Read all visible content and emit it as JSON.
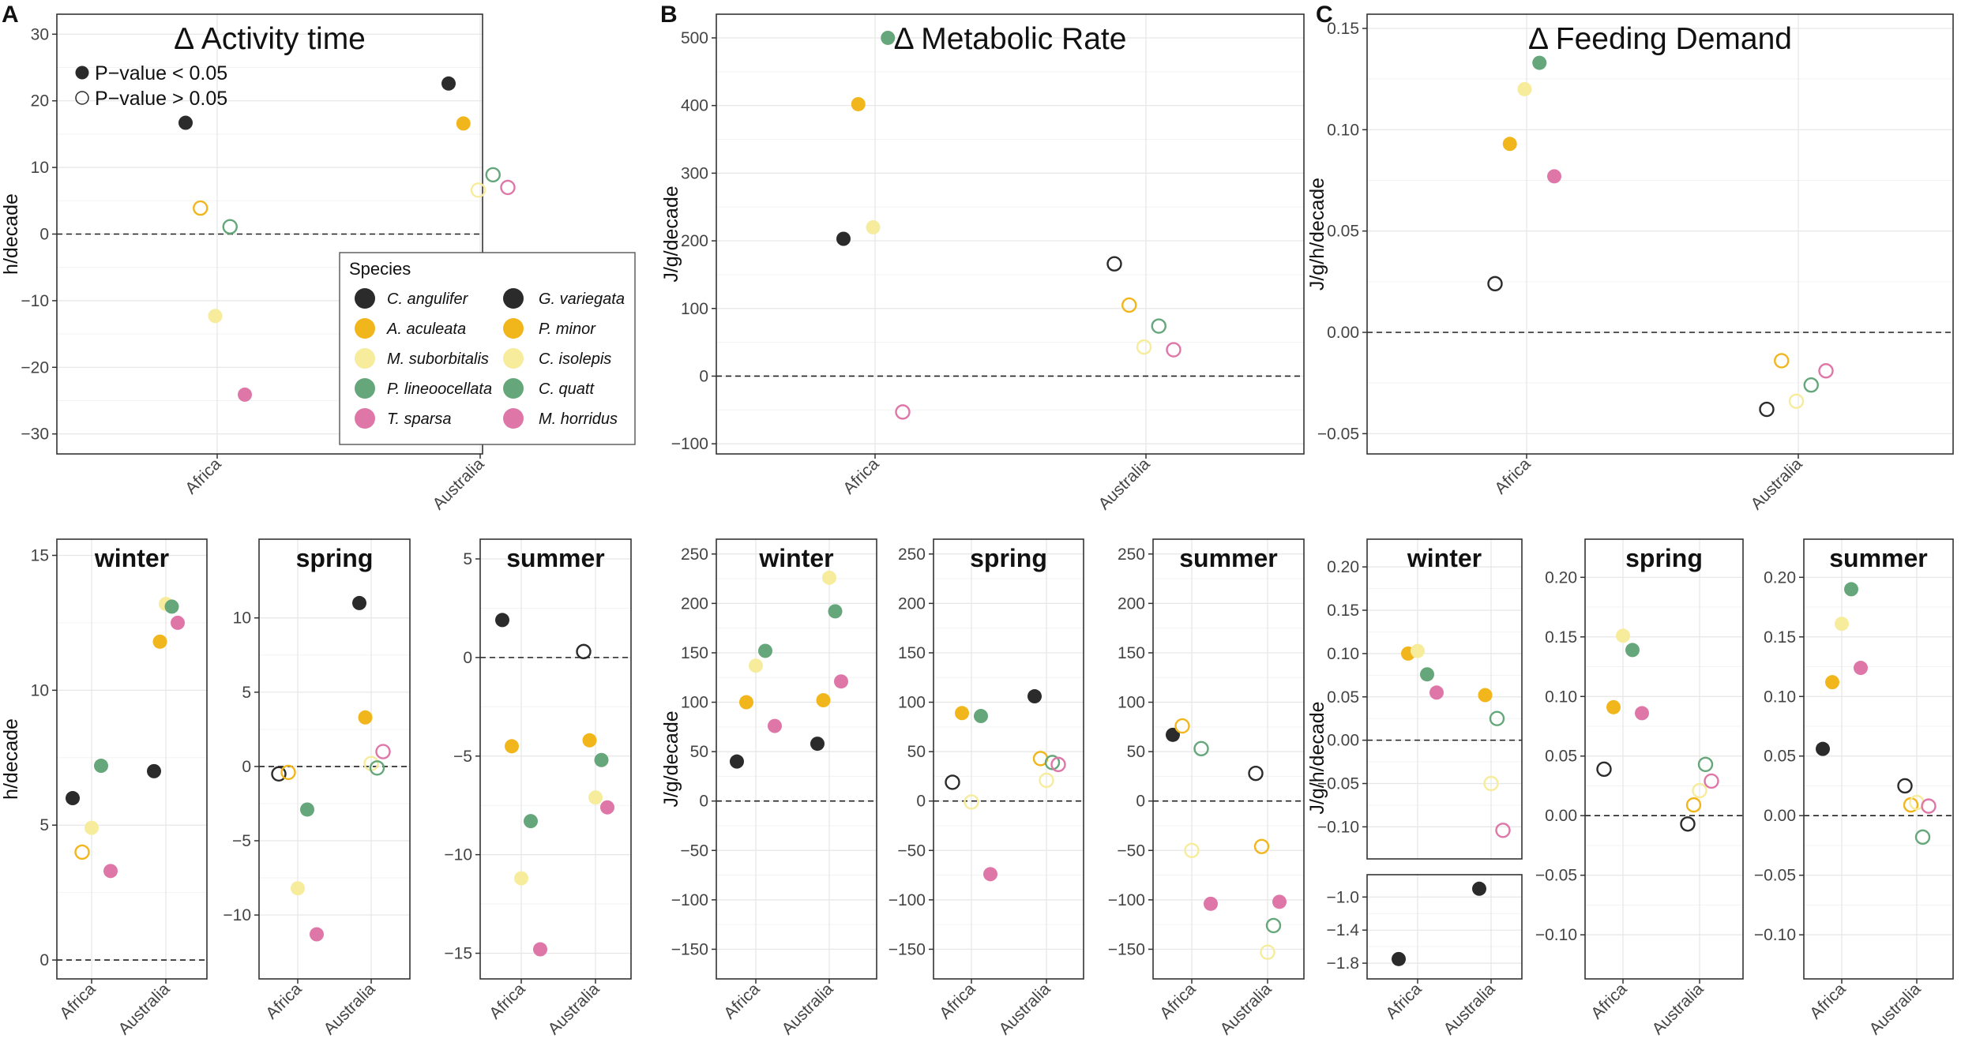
{
  "panel_labels": [
    "A",
    "B",
    "C"
  ],
  "legend": {
    "sig_yes": "P−value < 0.05",
    "sig_no": "P−value > 0.05",
    "species_title": "Species",
    "left": [
      "C. angulifer",
      "A. aculeata",
      "M. suborbitalis",
      "P. lineoocellata",
      "T. sparsa"
    ],
    "right": [
      "G. variegata",
      "P. minor",
      "C. isolepis",
      "C. quatt",
      "M. horridus"
    ]
  },
  "colors": [
    "#2b2b2b",
    "#f2b61d",
    "#f6ec9c",
    "#65a77a",
    "#de77a8"
  ],
  "chart_data": [
    {
      "id": "A_main",
      "type": "scatter",
      "title": "Δ Activity time",
      "ylabel": "h/decade",
      "categories": [
        "Africa",
        "Australia"
      ],
      "ylim": [
        -33,
        33
      ],
      "yticks": [
        -30,
        -20,
        -10,
        0,
        10,
        20,
        30
      ],
      "points": [
        {
          "c": 0,
          "s": 0,
          "g": 1,
          "y": 16.7
        },
        {
          "c": 0,
          "s": 1,
          "g": 0,
          "y": 3.9
        },
        {
          "c": 0,
          "s": 2,
          "g": 1,
          "y": -12.3
        },
        {
          "c": 0,
          "s": 3,
          "g": 0,
          "y": 1.1
        },
        {
          "c": 0,
          "s": 4,
          "g": 1,
          "y": -24.1
        },
        {
          "c": 1,
          "s": 0,
          "g": 1,
          "y": 22.6
        },
        {
          "c": 1,
          "s": 1,
          "g": 1,
          "y": 16.6
        },
        {
          "c": 1,
          "s": 2,
          "g": 0,
          "y": 6.6
        },
        {
          "c": 1,
          "s": 3,
          "g": 0,
          "y": 8.9
        },
        {
          "c": 1,
          "s": 4,
          "g": 0,
          "y": 7.0
        }
      ]
    },
    {
      "id": "B_main",
      "type": "scatter",
      "title": "Δ Metabolic Rate",
      "ylabel": "J/g/decade",
      "categories": [
        "Africa",
        "Australia"
      ],
      "ylim": [
        -115,
        535
      ],
      "yticks": [
        -100,
        0,
        100,
        200,
        300,
        400,
        500
      ],
      "points": [
        {
          "c": 0,
          "s": 0,
          "g": 1,
          "y": 203
        },
        {
          "c": 0,
          "s": 1,
          "g": 1,
          "y": 402
        },
        {
          "c": 0,
          "s": 2,
          "g": 1,
          "y": 220
        },
        {
          "c": 0,
          "s": 3,
          "g": 1,
          "y": 500
        },
        {
          "c": 0,
          "s": 4,
          "g": 0,
          "y": -53
        },
        {
          "c": 1,
          "s": 0,
          "g": 0,
          "y": 166
        },
        {
          "c": 1,
          "s": 1,
          "g": 0,
          "y": 105
        },
        {
          "c": 1,
          "s": 2,
          "g": 0,
          "y": 43
        },
        {
          "c": 1,
          "s": 3,
          "g": 0,
          "y": 74
        },
        {
          "c": 1,
          "s": 4,
          "g": 0,
          "y": 39
        }
      ]
    },
    {
      "id": "C_main",
      "type": "scatter",
      "title": "Δ Feeding Demand",
      "ylabel": "J/g/h/decade",
      "categories": [
        "Africa",
        "Australia"
      ],
      "ylim": [
        -0.06,
        0.157
      ],
      "yticks": [
        -0.05,
        0.0,
        0.05,
        0.1,
        0.15
      ],
      "yticklabels": [
        "−0.05",
        "0.00",
        "0.05",
        "0.10",
        "0.15"
      ],
      "points": [
        {
          "c": 0,
          "s": 0,
          "g": 0,
          "y": 0.024
        },
        {
          "c": 0,
          "s": 1,
          "g": 1,
          "y": 0.093
        },
        {
          "c": 0,
          "s": 2,
          "g": 1,
          "y": 0.12
        },
        {
          "c": 0,
          "s": 3,
          "g": 1,
          "y": 0.133
        },
        {
          "c": 0,
          "s": 4,
          "g": 1,
          "y": 0.077
        },
        {
          "c": 1,
          "s": 0,
          "g": 0,
          "y": -0.038
        },
        {
          "c": 1,
          "s": 1,
          "g": 0,
          "y": -0.014
        },
        {
          "c": 1,
          "s": 2,
          "g": 0,
          "y": -0.034
        },
        {
          "c": 1,
          "s": 3,
          "g": 0,
          "y": -0.026
        },
        {
          "c": 1,
          "s": 4,
          "g": 0,
          "y": -0.019
        }
      ]
    },
    {
      "id": "A_winter",
      "type": "scatter",
      "title": "winter",
      "ylabel": "h/decade",
      "categories": [
        "Africa",
        "Australia"
      ],
      "ylim": [
        -0.7,
        15.6
      ],
      "yticks": [
        0,
        5,
        10,
        15
      ],
      "points": [
        {
          "c": 0,
          "s": 0,
          "g": 1,
          "y": 6.0
        },
        {
          "c": 0,
          "s": 1,
          "g": 0,
          "y": 4.0
        },
        {
          "c": 0,
          "s": 2,
          "g": 1,
          "y": 4.9
        },
        {
          "c": 0,
          "s": 3,
          "g": 1,
          "y": 7.2
        },
        {
          "c": 0,
          "s": 4,
          "g": 1,
          "y": 3.3
        },
        {
          "c": 1,
          "s": 0,
          "g": 1,
          "y": 7.0
        },
        {
          "c": 1,
          "s": 1,
          "g": 1,
          "y": 11.8
        },
        {
          "c": 1,
          "s": 2,
          "g": 1,
          "y": 13.2
        },
        {
          "c": 1,
          "s": 3,
          "g": 1,
          "y": 13.1
        },
        {
          "c": 1,
          "s": 4,
          "g": 1,
          "y": 12.5
        }
      ]
    },
    {
      "id": "A_spring",
      "type": "scatter",
      "title": "spring",
      "ylabel": "",
      "categories": [
        "Africa",
        "Australia"
      ],
      "ylim": [
        -14.3,
        15.3
      ],
      "yticks": [
        -10,
        -5,
        0,
        5,
        10
      ],
      "points": [
        {
          "c": 0,
          "s": 0,
          "g": 0,
          "y": -0.5
        },
        {
          "c": 0,
          "s": 1,
          "g": 0,
          "y": -0.4
        },
        {
          "c": 0,
          "s": 2,
          "g": 1,
          "y": -8.2
        },
        {
          "c": 0,
          "s": 3,
          "g": 1,
          "y": -2.9
        },
        {
          "c": 0,
          "s": 4,
          "g": 1,
          "y": -11.3
        },
        {
          "c": 1,
          "s": 0,
          "g": 1,
          "y": 11.0
        },
        {
          "c": 1,
          "s": 1,
          "g": 1,
          "y": 3.3
        },
        {
          "c": 1,
          "s": 2,
          "g": 0,
          "y": 0.2
        },
        {
          "c": 1,
          "s": 3,
          "g": 0,
          "y": -0.1
        },
        {
          "c": 1,
          "s": 4,
          "g": 0,
          "y": 1.0
        }
      ]
    },
    {
      "id": "A_summer",
      "type": "scatter",
      "title": "summer",
      "ylabel": "",
      "categories": [
        "Africa",
        "Australia"
      ],
      "ylim": [
        -16.3,
        6.0
      ],
      "yticks": [
        -15,
        -10,
        -5,
        0,
        5
      ],
      "points": [
        {
          "c": 0,
          "s": 0,
          "g": 1,
          "y": 1.9
        },
        {
          "c": 0,
          "s": 1,
          "g": 1,
          "y": -4.5
        },
        {
          "c": 0,
          "s": 2,
          "g": 1,
          "y": -11.2
        },
        {
          "c": 0,
          "s": 3,
          "g": 1,
          "y": -8.3
        },
        {
          "c": 0,
          "s": 4,
          "g": 1,
          "y": -14.8
        },
        {
          "c": 1,
          "s": 0,
          "g": 0,
          "y": 0.3
        },
        {
          "c": 1,
          "s": 1,
          "g": 1,
          "y": -4.2
        },
        {
          "c": 1,
          "s": 2,
          "g": 1,
          "y": -7.1
        },
        {
          "c": 1,
          "s": 3,
          "g": 1,
          "y": -5.2
        },
        {
          "c": 1,
          "s": 4,
          "g": 1,
          "y": -7.6
        }
      ]
    },
    {
      "id": "B_winter",
      "type": "scatter",
      "title": "winter",
      "ylabel": "J/g/decade",
      "categories": [
        "Africa",
        "Australia"
      ],
      "ylim": [
        -180,
        265
      ],
      "yticks": [
        -150,
        -100,
        -50,
        0,
        50,
        100,
        150,
        200,
        250
      ],
      "points": [
        {
          "c": 0,
          "s": 0,
          "g": 1,
          "y": 40
        },
        {
          "c": 0,
          "s": 1,
          "g": 1,
          "y": 100
        },
        {
          "c": 0,
          "s": 2,
          "g": 1,
          "y": 137
        },
        {
          "c": 0,
          "s": 3,
          "g": 1,
          "y": 152
        },
        {
          "c": 0,
          "s": 4,
          "g": 1,
          "y": 76
        },
        {
          "c": 1,
          "s": 0,
          "g": 1,
          "y": 58
        },
        {
          "c": 1,
          "s": 1,
          "g": 1,
          "y": 102
        },
        {
          "c": 1,
          "s": 2,
          "g": 1,
          "y": 226
        },
        {
          "c": 1,
          "s": 3,
          "g": 1,
          "y": 192
        },
        {
          "c": 1,
          "s": 4,
          "g": 1,
          "y": 121
        }
      ]
    },
    {
      "id": "B_spring",
      "type": "scatter",
      "title": "spring",
      "ylabel": "",
      "categories": [
        "Africa",
        "Australia"
      ],
      "ylim": [
        -180,
        265
      ],
      "yticks": [
        -150,
        -100,
        -50,
        0,
        50,
        100,
        150,
        200,
        250
      ],
      "points": [
        {
          "c": 0,
          "s": 0,
          "g": 0,
          "y": 19
        },
        {
          "c": 0,
          "s": 1,
          "g": 1,
          "y": 89
        },
        {
          "c": 0,
          "s": 2,
          "g": 0,
          "y": -1
        },
        {
          "c": 0,
          "s": 3,
          "g": 1,
          "y": 86
        },
        {
          "c": 0,
          "s": 4,
          "g": 1,
          "y": -74
        },
        {
          "c": 1,
          "s": 0,
          "g": 1,
          "y": 106
        },
        {
          "c": 1,
          "s": 1,
          "g": 0,
          "y": 43
        },
        {
          "c": 1,
          "s": 2,
          "g": 0,
          "y": 21
        },
        {
          "c": 1,
          "s": 3,
          "g": 0,
          "y": 39
        },
        {
          "c": 1,
          "s": 4,
          "g": 0,
          "y": 37
        }
      ]
    },
    {
      "id": "B_summer",
      "type": "scatter",
      "title": "summer",
      "ylabel": "",
      "categories": [
        "Africa",
        "Australia"
      ],
      "ylim": [
        -180,
        265
      ],
      "yticks": [
        -150,
        -100,
        -50,
        0,
        50,
        100,
        150,
        200,
        250
      ],
      "points": [
        {
          "c": 0,
          "s": 0,
          "g": 1,
          "y": 67
        },
        {
          "c": 0,
          "s": 1,
          "g": 0,
          "y": 76
        },
        {
          "c": 0,
          "s": 2,
          "g": 0,
          "y": -50
        },
        {
          "c": 0,
          "s": 3,
          "g": 0,
          "y": 53
        },
        {
          "c": 0,
          "s": 4,
          "g": 1,
          "y": -104
        },
        {
          "c": 1,
          "s": 0,
          "g": 0,
          "y": 28
        },
        {
          "c": 1,
          "s": 1,
          "g": 0,
          "y": -46
        },
        {
          "c": 1,
          "s": 2,
          "g": 0,
          "y": -153
        },
        {
          "c": 1,
          "s": 3,
          "g": 0,
          "y": -126
        },
        {
          "c": 1,
          "s": 4,
          "g": 1,
          "y": -102
        }
      ]
    },
    {
      "id": "C_winter_top",
      "type": "scatter",
      "title": "winter",
      "ylabel": "J/g/h/decade",
      "categories": [
        "Africa",
        "Australia"
      ],
      "ylim": [
        -0.137,
        0.232
      ],
      "yticks": [
        -0.1,
        -0.05,
        0.0,
        0.05,
        0.1,
        0.15,
        0.2
      ],
      "yticklabels": [
        "−0.10",
        "−0.05",
        "0.00",
        "0.05",
        "0.10",
        "0.15",
        "0.20"
      ],
      "points": [
        {
          "c": 0,
          "s": 1,
          "g": 1,
          "y": 0.1
        },
        {
          "c": 0,
          "s": 2,
          "g": 1,
          "y": 0.103
        },
        {
          "c": 0,
          "s": 3,
          "g": 1,
          "y": 0.076
        },
        {
          "c": 0,
          "s": 4,
          "g": 1,
          "y": 0.055
        },
        {
          "c": 1,
          "s": 1,
          "g": 1,
          "y": 0.052
        },
        {
          "c": 1,
          "s": 2,
          "g": 0,
          "y": -0.05
        },
        {
          "c": 1,
          "s": 3,
          "g": 0,
          "y": 0.025
        },
        {
          "c": 1,
          "s": 4,
          "g": 0,
          "y": -0.104
        }
      ]
    },
    {
      "id": "C_winter_bottom",
      "type": "scatter",
      "title": "",
      "ylabel": "",
      "categories": [
        "Africa",
        "Australia"
      ],
      "ylim": [
        -1.99,
        -0.73
      ],
      "yticks": [
        -1.8,
        -1.4,
        -1.0
      ],
      "yticklabels": [
        "−1.8",
        "−1.4",
        "−1.0"
      ],
      "points": [
        {
          "c": 0,
          "s": 0,
          "g": 1,
          "y": -1.75
        },
        {
          "c": 1,
          "s": 0,
          "g": 1,
          "y": -0.9
        }
      ]
    },
    {
      "id": "C_spring",
      "type": "scatter",
      "title": "spring",
      "ylabel": "",
      "categories": [
        "Africa",
        "Australia"
      ],
      "ylim": [
        -0.137,
        0.232
      ],
      "yticks": [
        -0.1,
        -0.05,
        0.0,
        0.05,
        0.1,
        0.15,
        0.2
      ],
      "yticklabels": [
        "−0.10",
        "−0.05",
        "0.00",
        "0.05",
        "0.10",
        "0.15",
        "0.20"
      ],
      "points": [
        {
          "c": 0,
          "s": 0,
          "g": 0,
          "y": 0.039
        },
        {
          "c": 0,
          "s": 1,
          "g": 1,
          "y": 0.091
        },
        {
          "c": 0,
          "s": 2,
          "g": 1,
          "y": 0.151
        },
        {
          "c": 0,
          "s": 3,
          "g": 1,
          "y": 0.139
        },
        {
          "c": 0,
          "s": 4,
          "g": 1,
          "y": 0.086
        },
        {
          "c": 1,
          "s": 0,
          "g": 0,
          "y": -0.007
        },
        {
          "c": 1,
          "s": 1,
          "g": 0,
          "y": 0.009
        },
        {
          "c": 1,
          "s": 2,
          "g": 0,
          "y": 0.021
        },
        {
          "c": 1,
          "s": 3,
          "g": 0,
          "y": 0.043
        },
        {
          "c": 1,
          "s": 4,
          "g": 0,
          "y": 0.029
        }
      ]
    },
    {
      "id": "C_summer",
      "type": "scatter",
      "title": "summer",
      "ylabel": "",
      "categories": [
        "Africa",
        "Australia"
      ],
      "ylim": [
        -0.137,
        0.232
      ],
      "yticks": [
        -0.1,
        -0.05,
        0.0,
        0.05,
        0.1,
        0.15,
        0.2
      ],
      "yticklabels": [
        "−0.10",
        "−0.05",
        "0.00",
        "0.05",
        "0.10",
        "0.15",
        "0.20"
      ],
      "points": [
        {
          "c": 0,
          "s": 0,
          "g": 1,
          "y": 0.056
        },
        {
          "c": 0,
          "s": 1,
          "g": 1,
          "y": 0.112
        },
        {
          "c": 0,
          "s": 2,
          "g": 1,
          "y": 0.161
        },
        {
          "c": 0,
          "s": 3,
          "g": 1,
          "y": 0.19
        },
        {
          "c": 0,
          "s": 4,
          "g": 1,
          "y": 0.124
        },
        {
          "c": 1,
          "s": 0,
          "g": 0,
          "y": 0.025
        },
        {
          "c": 1,
          "s": 1,
          "g": 0,
          "y": 0.009
        },
        {
          "c": 1,
          "s": 2,
          "g": 0,
          "y": 0.011
        },
        {
          "c": 1,
          "s": 3,
          "g": 0,
          "y": -0.018
        },
        {
          "c": 1,
          "s": 4,
          "g": 0,
          "y": 0.008
        }
      ]
    }
  ]
}
